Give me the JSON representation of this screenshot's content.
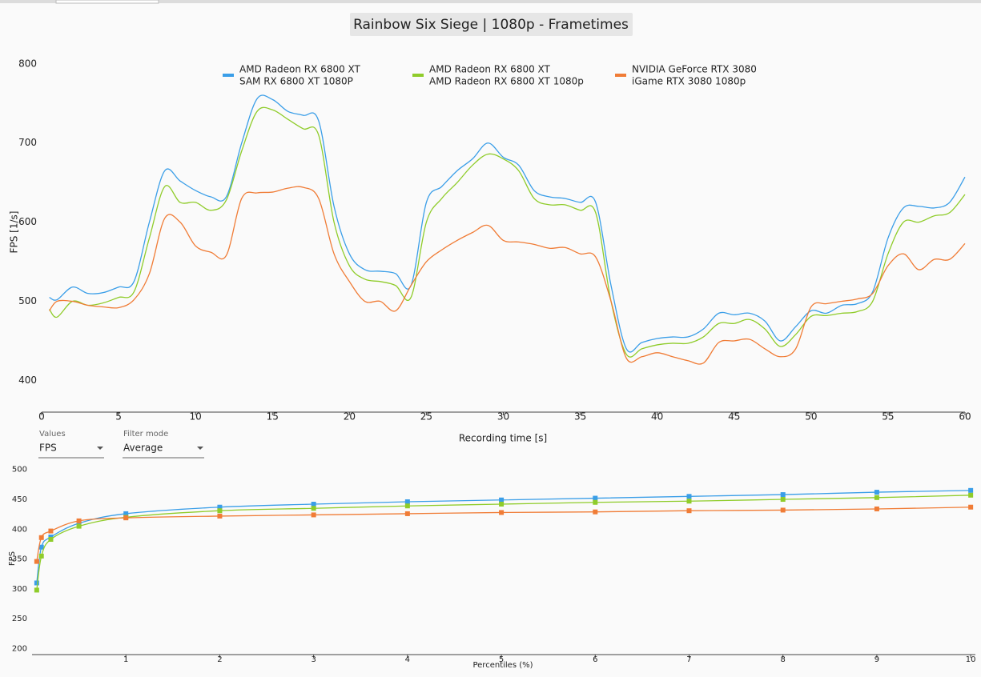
{
  "chart_data": [
    {
      "type": "line",
      "title": "Rainbow Six Siege | 1080p - Frametimes",
      "ylabel": "FPS [1/s]",
      "xlabel": "Recording time [s]",
      "xlim": [
        0,
        60
      ],
      "ylim": [
        360,
        815
      ],
      "xticks": [
        0,
        5,
        10,
        15,
        20,
        25,
        30,
        35,
        40,
        45,
        50,
        55,
        60
      ],
      "yticks": [
        400,
        500,
        600,
        700,
        800
      ],
      "grid": false,
      "x": [
        0.5,
        1,
        2,
        3,
        4,
        5,
        6,
        7,
        8,
        9,
        10,
        11,
        12,
        13,
        14,
        15,
        16,
        17,
        18,
        19,
        20,
        21,
        22,
        23,
        24,
        25,
        26,
        27,
        28,
        29,
        30,
        31,
        32,
        33,
        34,
        35,
        36,
        37,
        38,
        39,
        40,
        41,
        42,
        43,
        44,
        45,
        46,
        47,
        48,
        49,
        50,
        51,
        52,
        53,
        54,
        55,
        56,
        57,
        58,
        59,
        60
      ],
      "series": [
        {
          "name": "AMD Radeon RX 6800 XT",
          "detail": "SAM RX 6800 XT 1080P",
          "color": "#3a9ee8",
          "values": [
            505,
            502,
            518,
            510,
            511,
            518,
            525,
            600,
            665,
            652,
            640,
            632,
            632,
            700,
            756,
            755,
            740,
            735,
            728,
            620,
            560,
            540,
            538,
            535,
            520,
            625,
            645,
            665,
            680,
            700,
            682,
            672,
            640,
            632,
            630,
            625,
            625,
            520,
            440,
            448,
            453,
            455,
            455,
            465,
            485,
            483,
            485,
            475,
            450,
            468,
            488,
            485,
            495,
            497,
            512,
            580,
            618,
            620,
            618,
            625,
            657
          ]
        },
        {
          "name": "AMD Radeon RX 6800 XT",
          "detail": "AMD Radeon RX 6800 XT 1080p",
          "color": "#8fcc2a",
          "values": [
            490,
            480,
            500,
            495,
            498,
            505,
            512,
            580,
            645,
            625,
            625,
            615,
            628,
            690,
            740,
            742,
            730,
            718,
            710,
            600,
            545,
            528,
            525,
            520,
            505,
            600,
            630,
            650,
            672,
            686,
            680,
            665,
            630,
            622,
            622,
            615,
            612,
            500,
            433,
            440,
            445,
            447,
            447,
            455,
            472,
            472,
            477,
            465,
            443,
            458,
            481,
            482,
            485,
            487,
            500,
            560,
            600,
            600,
            608,
            612,
            635
          ]
        },
        {
          "name": "NVIDIA GeForce RTX 3080",
          "detail": "iGame RTX 3080 1080p",
          "color": "#f07c36",
          "values": [
            488,
            500,
            500,
            495,
            493,
            492,
            502,
            535,
            605,
            600,
            570,
            562,
            558,
            630,
            637,
            638,
            643,
            644,
            630,
            560,
            525,
            500,
            500,
            488,
            520,
            550,
            565,
            577,
            587,
            596,
            577,
            575,
            572,
            567,
            568,
            560,
            556,
            500,
            428,
            430,
            435,
            430,
            425,
            422,
            448,
            450,
            452,
            440,
            430,
            440,
            493,
            497,
            500,
            503,
            510,
            545,
            560,
            540,
            553,
            553,
            573
          ]
        }
      ]
    },
    {
      "type": "line",
      "ylabel": "FPS",
      "xlabel": "Percentiles (%)",
      "xlim": [
        0,
        10.05
      ],
      "ylim": [
        190,
        505
      ],
      "xticks": [
        1,
        2,
        3,
        4,
        5,
        6,
        7,
        8,
        9,
        10
      ],
      "yticks": [
        200,
        250,
        300,
        350,
        400,
        450,
        500
      ],
      "markers": true,
      "x": [
        0.05,
        0.1,
        0.2,
        0.5,
        1,
        2,
        3,
        4,
        5,
        6,
        7,
        8,
        9,
        10
      ],
      "series": [
        {
          "color": "#3a9ee8",
          "values": [
            310,
            370,
            387,
            410,
            426,
            437,
            442,
            446,
            449,
            452,
            455,
            458,
            462,
            465
          ]
        },
        {
          "color": "#8fcc2a",
          "values": [
            298,
            355,
            383,
            405,
            420,
            431,
            435,
            439,
            442,
            445,
            447,
            450,
            453,
            457
          ]
        },
        {
          "color": "#f07c36",
          "values": [
            346,
            386,
            397,
            414,
            419,
            422,
            424,
            426,
            428,
            429,
            431,
            432,
            434,
            437
          ]
        }
      ]
    }
  ],
  "controls": [
    {
      "label": "Values",
      "value": "FPS"
    },
    {
      "label": "Filter mode",
      "value": "Average"
    }
  ]
}
